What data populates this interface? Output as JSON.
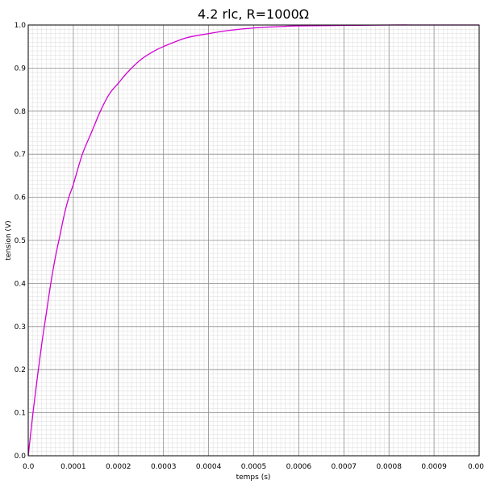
{
  "chart_data": {
    "type": "line",
    "title": "4.2 rlc, R=1000Ω",
    "xlabel": "temps (s)",
    "ylabel": "tension (V)",
    "xlim": [
      0,
      0.001
    ],
    "ylim": [
      0,
      1
    ],
    "x_ticks": [
      "0.0",
      "0.0001",
      "0.0002",
      "0.0003",
      "0.0004",
      "0.0005",
      "0.0006",
      "0.0007",
      "0.0008",
      "0.0009",
      "0.00"
    ],
    "y_ticks": [
      "0.0",
      "0.1",
      "0.2",
      "0.3",
      "0.4",
      "0.5",
      "0.6",
      "0.7",
      "0.8",
      "0.9",
      "1.0"
    ],
    "grid": true,
    "minor_grid": true,
    "series": [
      {
        "color": "#d400d4",
        "x": [
          0,
          1e-05,
          2e-05,
          3e-05,
          4e-05,
          5e-05,
          6e-05,
          7e-05,
          8e-05,
          9e-05,
          0.0001,
          0.00012,
          0.00014,
          0.00016,
          0.00018,
          0.0002,
          0.00022,
          0.00025,
          0.00028,
          0.0003,
          0.00035,
          0.0004,
          0.00045,
          0.0005,
          0.00055,
          0.0006,
          0.0007,
          0.0008,
          0.0009,
          0.001
        ],
        "values": [
          0.0,
          0.095,
          0.18,
          0.26,
          0.33,
          0.4,
          0.46,
          0.51,
          0.56,
          0.6,
          0.63,
          0.7,
          0.75,
          0.8,
          0.84,
          0.865,
          0.89,
          0.92,
          0.94,
          0.95,
          0.97,
          0.98,
          0.988,
          0.993,
          0.996,
          0.998,
          0.999,
          1.0,
          1.0,
          1.0
        ]
      }
    ]
  }
}
